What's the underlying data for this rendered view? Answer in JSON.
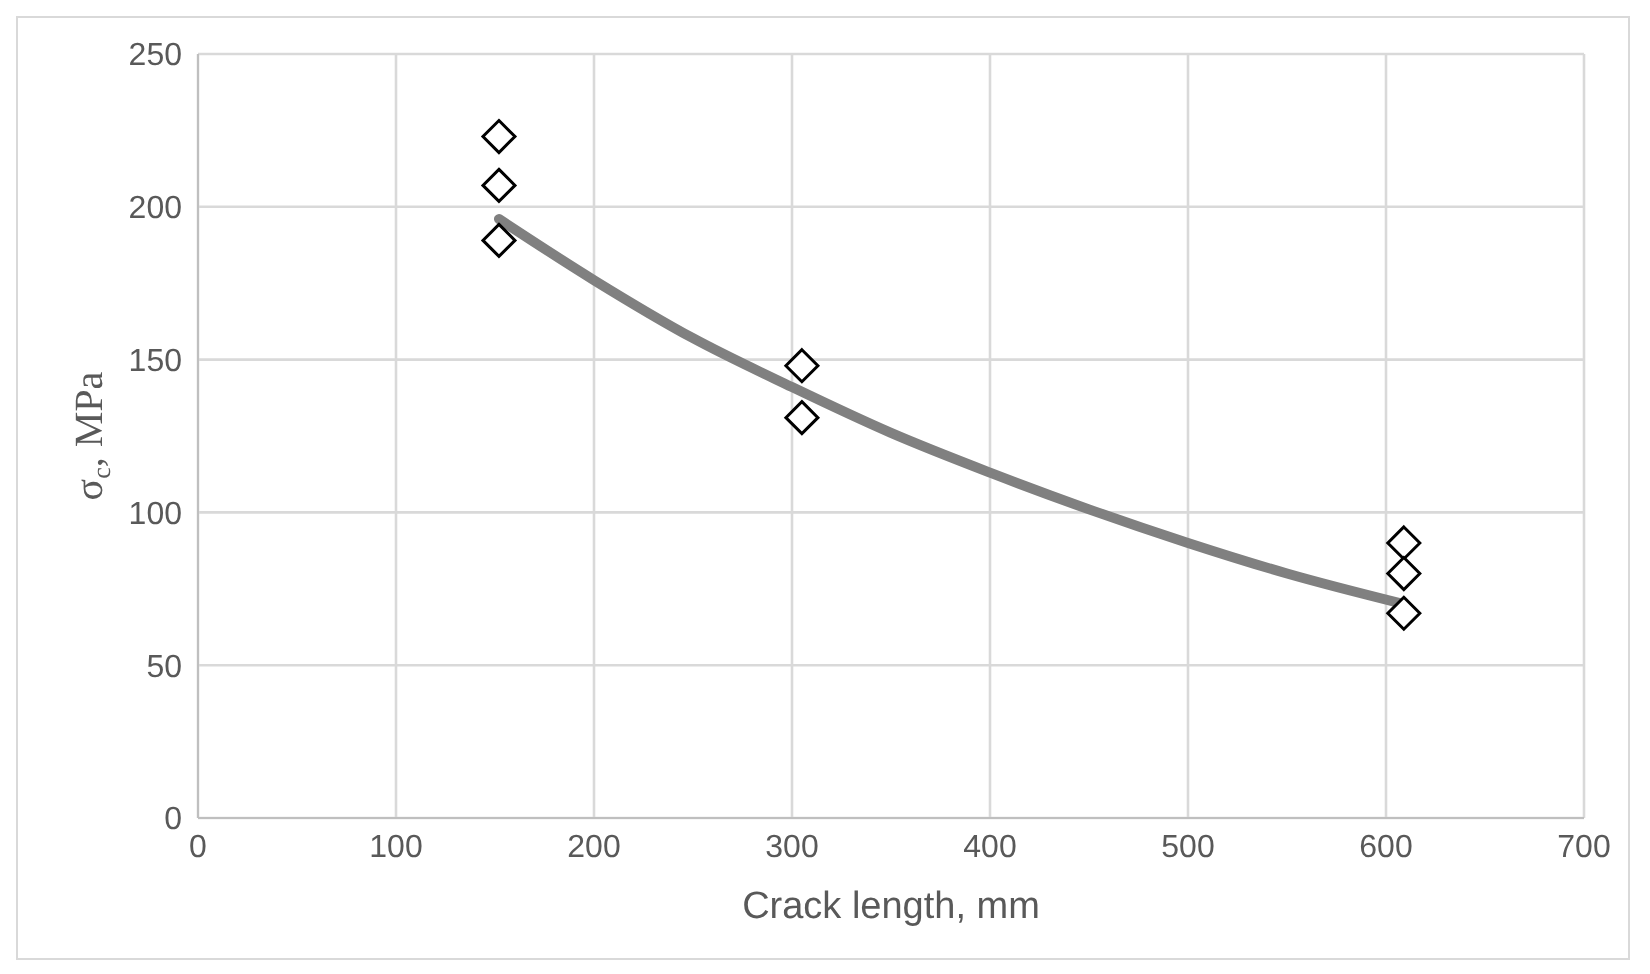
{
  "chart_data": {
    "type": "scatter",
    "xlabel": "Crack length, mm",
    "ylabel": "σ$_{c}$, MPa",
    "series": [
      {
        "color": "#000000",
        "marker": "diamond",
        "x": [
          152,
          152,
          152,
          305,
          305,
          609,
          609,
          609
        ],
        "values": [
          223,
          207,
          189,
          148,
          131,
          90,
          80,
          67
        ]
      },
      {
        "type": "line",
        "color": "#808080",
        "marker": "none",
        "line_style": "solid",
        "x": [
          152,
          200,
          250,
          300,
          350,
          400,
          450,
          500,
          550,
          609
        ],
        "values": [
          196,
          176,
          157,
          141,
          126,
          113,
          101,
          90,
          80,
          70
        ]
      }
    ],
    "xlim": [
      0,
      700
    ],
    "xticks": [
      0,
      100,
      200,
      300,
      400,
      500,
      600,
      700
    ],
    "ylim": [
      0,
      250
    ],
    "yticks": [
      0,
      50,
      100,
      150,
      200,
      250
    ],
    "grid": true
  }
}
